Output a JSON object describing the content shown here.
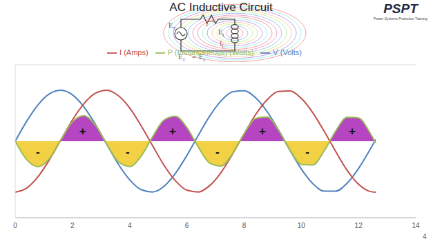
{
  "header": {
    "title": "AC Inductive Circuit",
    "logo": "PSPT",
    "logo_subtitle": "Power Systems Protection Training"
  },
  "diagram": {
    "labels": [
      {
        "text": "E",
        "sub": "T"
      },
      {
        "text": "I"
      },
      {
        "text": "E",
        "sub": "L"
      },
      {
        "text": "I",
        "sub": "L"
      }
    ],
    "equation": [
      {
        "text": "E",
        "sub": "T"
      },
      {
        "text": "="
      },
      {
        "text": "E",
        "sub": "L"
      }
    ]
  },
  "page_number": 4,
  "chart_data": {
    "type": "line",
    "x": [
      0,
      0.4,
      0.8,
      1.2,
      1.6,
      2.0,
      2.4,
      2.8,
      3.2,
      3.6,
      4.0,
      4.4,
      4.8,
      5.2,
      5.6,
      6.0,
      6.4,
      6.8,
      7.2,
      7.6,
      8.0,
      8.4,
      8.8,
      9.2,
      9.6,
      10.0,
      10.4,
      10.8,
      11.2,
      11.6,
      12.0,
      12.4,
      12.6
    ],
    "series": [
      {
        "name": "V (Volts)",
        "color": "#4f81bd",
        "values": [
          0,
          0.78,
          1.43,
          1.86,
          2.0,
          1.82,
          1.35,
          0.67,
          -0.12,
          -0.89,
          -1.51,
          -1.9,
          -1.99,
          -1.77,
          -1.26,
          -0.56,
          0.23,
          0.99,
          1.59,
          1.94,
          1.98,
          1.71,
          1.17,
          0.45,
          -0.35,
          -1.09,
          -1.66,
          -1.96,
          -1.96,
          -1.65,
          -1.07,
          -0.33,
          0.07
        ]
      },
      {
        "name": "I (Amps)",
        "color": "#c0504d",
        "values": [
          -2,
          -1.84,
          -1.39,
          -0.72,
          0.06,
          0.83,
          1.47,
          1.88,
          2.0,
          1.79,
          1.31,
          0.61,
          -0.17,
          -0.94,
          -1.55,
          -1.92,
          -1.99,
          -1.74,
          -1.22,
          -0.5,
          0.29,
          1.04,
          1.62,
          1.95,
          1.97,
          1.68,
          1.12,
          0.39,
          -0.4,
          -1.14,
          -1.69,
          -1.97,
          -2.0
        ]
      },
      {
        "name": "P (Instantaneous) (Watts)",
        "color": "#9bbb59",
        "type": "area",
        "values": [
          0,
          -0.72,
          -1.0,
          -0.68,
          0.06,
          0.76,
          1.0,
          0.63,
          -0.12,
          -0.8,
          -0.99,
          -0.59,
          0.17,
          0.83,
          0.98,
          0.54,
          -0.23,
          -0.86,
          -0.97,
          -0.48,
          0.29,
          0.89,
          0.95,
          0.44,
          -0.34,
          -0.91,
          -0.93,
          -0.38,
          0.4,
          0.94,
          0.91,
          0.33,
          -0.07
        ]
      }
    ],
    "annotations": [
      {
        "text": "-",
        "x": 0.79,
        "y": -0.4
      },
      {
        "text": "+",
        "x": 2.36,
        "y": 0.4
      },
      {
        "text": "-",
        "x": 3.93,
        "y": -0.4
      },
      {
        "text": "+",
        "x": 5.5,
        "y": 0.4
      },
      {
        "text": "-",
        "x": 7.07,
        "y": -0.4
      },
      {
        "text": "+",
        "x": 8.64,
        "y": 0.4
      },
      {
        "text": "-",
        "x": 10.21,
        "y": -0.4
      },
      {
        "text": "+",
        "x": 11.78,
        "y": 0.4
      }
    ],
    "xlim": [
      0,
      14
    ],
    "xticks": [
      0,
      2,
      4,
      6,
      8,
      10,
      12,
      14
    ],
    "ylim": [
      -3,
      3
    ],
    "yticks": [
      -3,
      -2,
      -1,
      0,
      1,
      2,
      3
    ],
    "grid": true,
    "legend": "top",
    "tick_labels": "x"
  }
}
